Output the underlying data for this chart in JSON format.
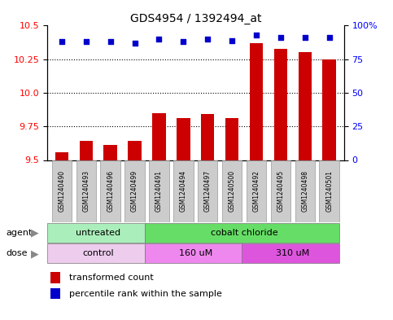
{
  "title": "GDS4954 / 1392494_at",
  "samples": [
    "GSM1240490",
    "GSM1240493",
    "GSM1240496",
    "GSM1240499",
    "GSM1240491",
    "GSM1240494",
    "GSM1240497",
    "GSM1240500",
    "GSM1240492",
    "GSM1240495",
    "GSM1240498",
    "GSM1240501"
  ],
  "bar_values": [
    9.56,
    9.64,
    9.61,
    9.64,
    9.85,
    9.81,
    9.84,
    9.81,
    10.37,
    10.33,
    10.3,
    10.25
  ],
  "percentile_values": [
    88,
    88,
    88,
    87,
    90,
    88,
    90,
    89,
    93,
    91,
    91,
    91
  ],
  "ylim_left": [
    9.5,
    10.5
  ],
  "ylim_right": [
    0,
    100
  ],
  "yticks_left": [
    9.5,
    9.75,
    10.0,
    10.25,
    10.5
  ],
  "yticks_right": [
    0,
    25,
    50,
    75,
    100
  ],
  "bar_color": "#cc0000",
  "percentile_color": "#0000cc",
  "agent_groups": [
    {
      "label": "untreated",
      "start": 0,
      "end": 4,
      "color": "#aaeebb"
    },
    {
      "label": "cobalt chloride",
      "start": 4,
      "end": 12,
      "color": "#66dd66"
    }
  ],
  "dose_groups": [
    {
      "label": "control",
      "start": 0,
      "end": 4,
      "color": "#eeccee"
    },
    {
      "label": "160 uM",
      "start": 4,
      "end": 8,
      "color": "#ee88ee"
    },
    {
      "label": "310 uM",
      "start": 8,
      "end": 12,
      "color": "#dd55dd"
    }
  ],
  "legend_bar_label": "transformed count",
  "legend_pct_label": "percentile rank within the sample",
  "bar_width": 0.55,
  "title_fontsize": 10,
  "sample_box_color": "#cccccc",
  "arrow_color": "#888888"
}
